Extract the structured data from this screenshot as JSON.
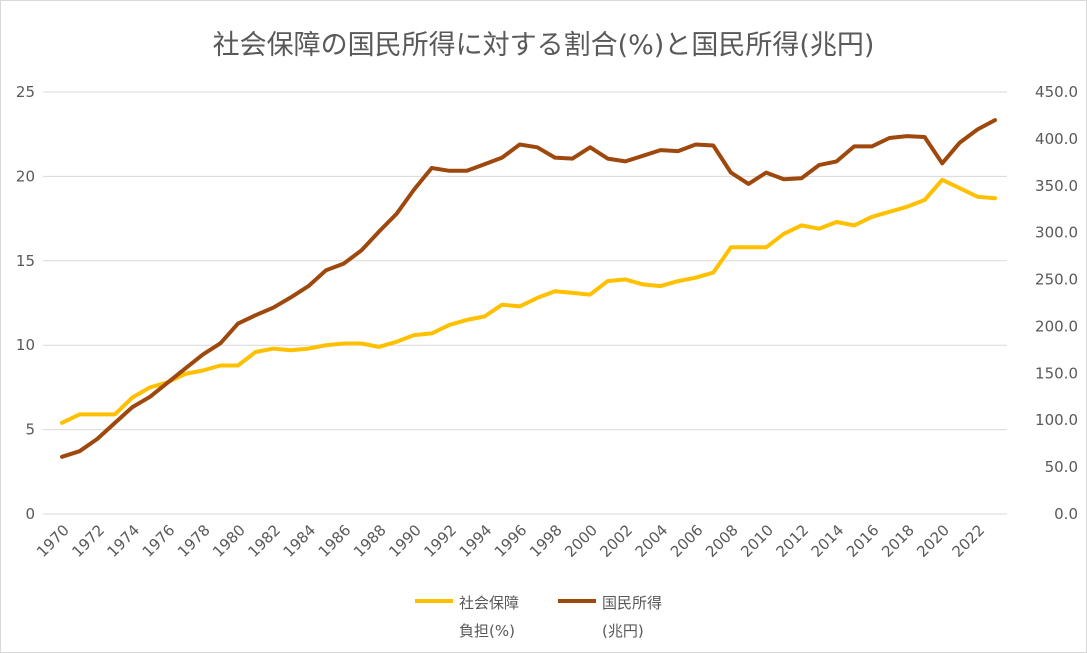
{
  "chart_data": {
    "type": "line",
    "title": "社会保障の国民所得に対する割合(%)と国民所得(兆円)",
    "x": [
      1970,
      1971,
      1972,
      1973,
      1974,
      1975,
      1976,
      1977,
      1978,
      1979,
      1980,
      1981,
      1982,
      1983,
      1984,
      1985,
      1986,
      1987,
      1988,
      1989,
      1990,
      1991,
      1992,
      1993,
      1994,
      1995,
      1996,
      1997,
      1998,
      1999,
      2000,
      2001,
      2002,
      2003,
      2004,
      2005,
      2006,
      2007,
      2008,
      2009,
      2010,
      2011,
      2012,
      2013,
      2014,
      2015,
      2016,
      2017,
      2018,
      2019,
      2020,
      2021,
      2022,
      2023
    ],
    "x_tick_labels": [
      "1970",
      "1972",
      "1974",
      "1976",
      "1978",
      "1980",
      "1982",
      "1984",
      "1986",
      "1988",
      "1990",
      "1992",
      "1994",
      "1996",
      "1998",
      "2000",
      "2002",
      "2004",
      "2006",
      "2008",
      "2010",
      "2012",
      "2014",
      "2016",
      "2018",
      "2020",
      "2022"
    ],
    "y_left": {
      "min": 0,
      "max": 25,
      "ticks": [
        "0",
        "5",
        "10",
        "15",
        "20",
        "25"
      ]
    },
    "y_right": {
      "min": 0,
      "max": 450,
      "ticks": [
        "0.0",
        "50.0",
        "100.0",
        "150.0",
        "200.0",
        "250.0",
        "300.0",
        "350.0",
        "400.0",
        "450.0"
      ]
    },
    "gridlines": true,
    "legend_position": "bottom",
    "series": [
      {
        "name": "社会保障負担(%)",
        "legend_line1": "社会保障",
        "legend_line2": "負担(%)",
        "axis": "left",
        "color": "#ffc000",
        "values": [
          5.4,
          5.9,
          5.9,
          5.9,
          6.9,
          7.5,
          7.8,
          8.3,
          8.5,
          8.8,
          8.8,
          9.6,
          9.8,
          9.7,
          9.8,
          10.0,
          10.1,
          10.1,
          9.9,
          10.2,
          10.6,
          10.7,
          11.2,
          11.5,
          11.7,
          12.4,
          12.3,
          12.8,
          13.2,
          13.1,
          13.0,
          13.8,
          13.9,
          13.6,
          13.5,
          13.8,
          14.0,
          14.3,
          15.8,
          15.8,
          15.8,
          16.6,
          17.1,
          16.9,
          17.3,
          17.1,
          17.6,
          17.9,
          18.2,
          18.6,
          19.8,
          19.3,
          18.8,
          18.7
        ]
      },
      {
        "name": "国民所得(兆円)",
        "legend_line1": "国民所得",
        "legend_line2": "(兆円)",
        "axis": "right",
        "color": "#9e480e",
        "values": [
          61,
          67,
          80,
          97,
          114,
          125,
          140,
          155,
          170,
          182,
          203,
          212,
          220,
          231,
          243,
          260,
          267,
          281,
          301,
          320,
          346,
          369,
          366,
          366,
          373,
          380,
          394,
          391,
          380,
          379,
          391,
          379,
          376,
          382,
          388,
          387,
          394,
          393,
          364,
          352,
          364,
          357,
          358,
          372,
          376,
          392,
          392,
          401,
          403,
          402,
          374,
          396,
          410,
          420
        ]
      }
    ]
  }
}
